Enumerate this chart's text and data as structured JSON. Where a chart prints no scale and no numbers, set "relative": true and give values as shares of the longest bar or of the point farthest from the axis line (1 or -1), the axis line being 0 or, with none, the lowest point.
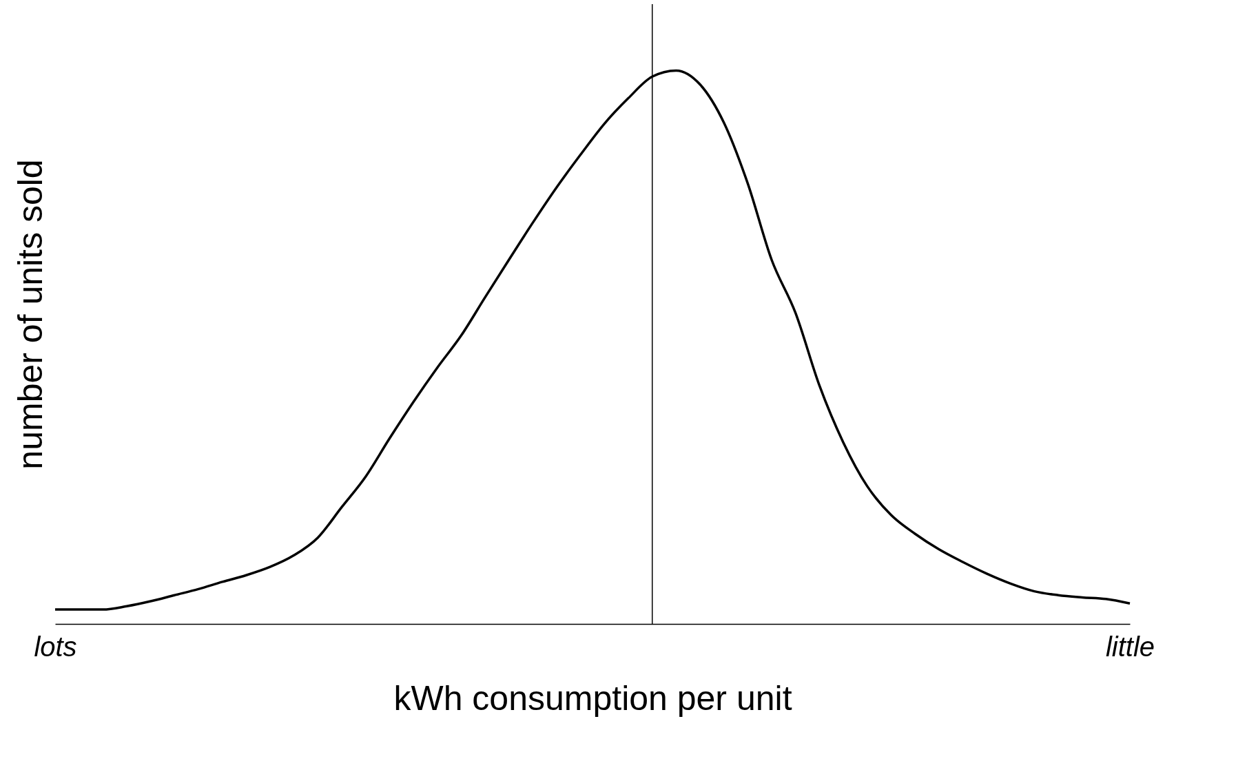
{
  "chart_data": {
    "type": "line",
    "relative": true,
    "xlabel": "kWh consumption per unit",
    "ylabel": "number of units sold",
    "categories": [
      "lots",
      null,
      null,
      null,
      null,
      null,
      null,
      null,
      null,
      null,
      null,
      null,
      null,
      null,
      null,
      null,
      null,
      null,
      null,
      null,
      null,
      null,
      null,
      null,
      null,
      null,
      null,
      null,
      null,
      null,
      null,
      null,
      null,
      null,
      null,
      null,
      null,
      null,
      null,
      null,
      null,
      null,
      null,
      null,
      null,
      "little"
    ],
    "series": [
      {
        "color": "#000000",
        "values": [
          0.026,
          0.026,
          0.026,
          0.032,
          0.041,
          0.052,
          0.063,
          0.076,
          0.088,
          0.103,
          0.124,
          0.156,
          0.211,
          0.266,
          0.335,
          0.401,
          0.463,
          0.521,
          0.59,
          0.658,
          0.725,
          0.789,
          0.848,
          0.904,
          0.95,
          0.989,
          1.0,
          0.975,
          0.906,
          0.796,
          0.658,
          0.562,
          0.431,
          0.328,
          0.249,
          0.197,
          0.163,
          0.135,
          0.112,
          0.091,
          0.073,
          0.059,
          0.052,
          0.048,
          0.045,
          0.037
        ]
      }
    ]
  }
}
